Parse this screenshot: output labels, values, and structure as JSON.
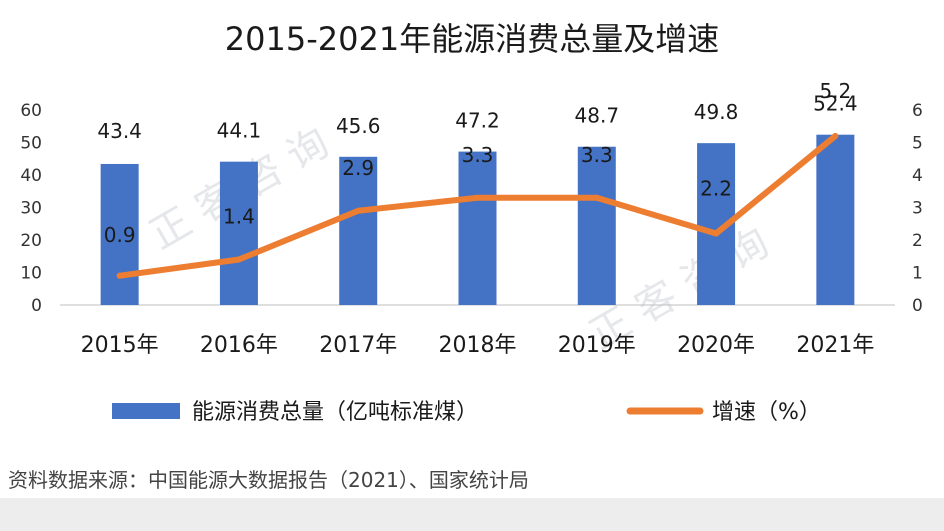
{
  "chart_data": {
    "type": "bar",
    "title": "2015-2021年能源消费总量及增速",
    "categories": [
      "2015年",
      "2016年",
      "2017年",
      "2018年",
      "2019年",
      "2020年",
      "2021年"
    ],
    "series": [
      {
        "name": "能源消费总量（亿吨标准煤）",
        "type": "bar",
        "axis": "left",
        "color": "#4472c4",
        "values": [
          43.4,
          44.1,
          45.6,
          47.2,
          48.7,
          49.8,
          52.4
        ],
        "labels": [
          "43.4",
          "44.1",
          "45.6",
          "47.2",
          "48.7",
          "49.8",
          "52.4"
        ]
      },
      {
        "name": "增速（%）",
        "type": "line",
        "axis": "right",
        "color": "#ed7d31",
        "values": [
          0.9,
          1.4,
          2.9,
          3.3,
          3.3,
          2.2,
          5.2
        ],
        "labels": [
          "0.9",
          "1.4",
          "2.9",
          "3.3",
          "3.3",
          "2.2",
          "5.2"
        ]
      }
    ],
    "y_left": {
      "range": [
        0,
        60
      ],
      "ticks": [
        "0",
        "10",
        "20",
        "30",
        "40",
        "50",
        "60"
      ]
    },
    "y_right": {
      "range": [
        0,
        6
      ],
      "ticks": [
        "0",
        "1",
        "2",
        "3",
        "4",
        "5",
        "6"
      ]
    },
    "grid": false,
    "legend": "bottom"
  },
  "watermark": [
    "正 客 咨 询",
    "正 客 咨 询"
  ],
  "source": "资料数据来源：中国能源大数据报告（2021）、国家统计局"
}
